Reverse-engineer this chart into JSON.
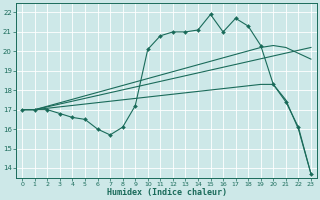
{
  "bg_color": "#cde8e8",
  "grid_color": "#b0d0d0",
  "line_color": "#1a6b5a",
  "xlabel": "Humidex (Indice chaleur)",
  "xlim": [
    -0.5,
    23.5
  ],
  "ylim": [
    13.5,
    22.5
  ],
  "yticks": [
    14,
    15,
    16,
    17,
    18,
    19,
    20,
    21,
    22
  ],
  "xticks": [
    0,
    1,
    2,
    3,
    4,
    5,
    6,
    7,
    8,
    9,
    10,
    11,
    12,
    13,
    14,
    15,
    16,
    17,
    18,
    19,
    20,
    21,
    22,
    23
  ],
  "line1_x": [
    0,
    1,
    2,
    3,
    4,
    5,
    6,
    7,
    8,
    9,
    10,
    11,
    12,
    13,
    14,
    15,
    16,
    17,
    18,
    19,
    20,
    21,
    22,
    23
  ],
  "line1_y": [
    17.0,
    17.0,
    17.0,
    16.8,
    16.6,
    16.5,
    16.0,
    15.7,
    16.1,
    17.2,
    20.1,
    20.8,
    21.0,
    21.0,
    21.1,
    21.9,
    21.0,
    21.7,
    21.3,
    20.3,
    18.3,
    17.4,
    16.1,
    13.7
  ],
  "line2_x": [
    0,
    1,
    23
  ],
  "line2_y": [
    17.0,
    17.0,
    20.2
  ],
  "line3_x": [
    0,
    1,
    19,
    20,
    21,
    22,
    23
  ],
  "line3_y": [
    17.0,
    17.0,
    18.3,
    18.3,
    17.5,
    16.0,
    13.7
  ],
  "line4_x": [
    0,
    1,
    19,
    20,
    21,
    22,
    23
  ],
  "line4_y": [
    17.0,
    17.0,
    20.2,
    20.3,
    20.2,
    19.9,
    19.6
  ]
}
